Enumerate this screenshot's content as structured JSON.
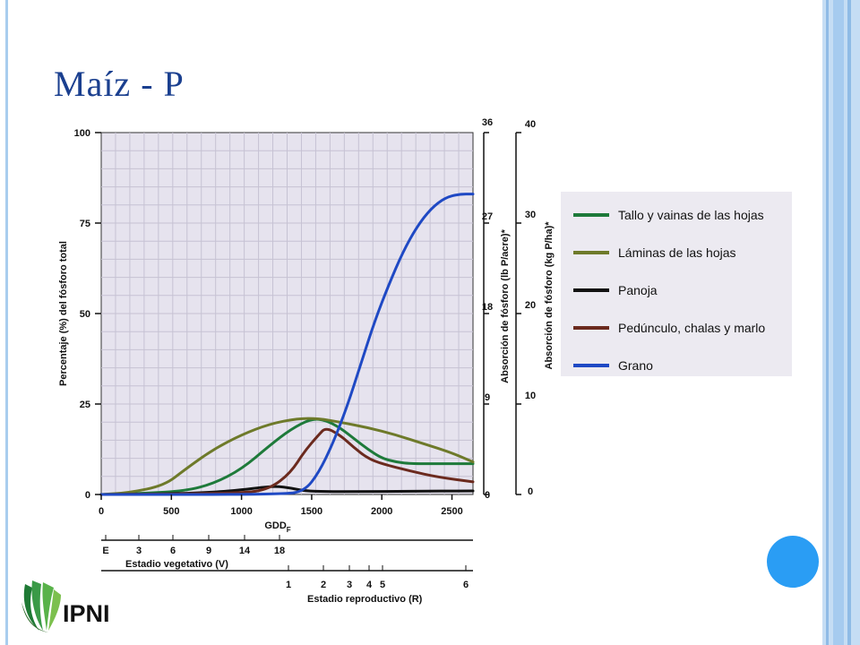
{
  "slide": {
    "title": "Maíz - P"
  },
  "logo": {
    "text": "IPNI"
  },
  "colors": {
    "accent": "#1a3f8f",
    "dot": "#2a9df4",
    "frame": "#a9cdee"
  },
  "chart_data": {
    "type": "line",
    "title": "",
    "xlabel": "GDD",
    "xlabel_subscript": "F",
    "ylabel": "Percentaje (%) del fósforo total",
    "y2label": "Absorción de fósforo (lb P/acre)*",
    "y3label": "Absorción de fósforo (kg P/ha)*",
    "xlim": [
      0,
      2650
    ],
    "ylim": [
      0,
      100
    ],
    "x_ticks": [
      "0",
      "500",
      "1000",
      "1500",
      "2000",
      "2500"
    ],
    "y_ticks": [
      "0",
      "25",
      "50",
      "75",
      "100"
    ],
    "y2_ticks": [
      "0",
      "9",
      "18",
      "27",
      "36"
    ],
    "y3_ticks": [
      "0",
      "10",
      "20",
      "30",
      "40"
    ],
    "grid": true,
    "legend_position": "right",
    "series": [
      {
        "name": "Tallo y vainas de las hojas",
        "color": "#1e7a3a",
        "x": [
          0,
          300,
          600,
          800,
          1000,
          1200,
          1350,
          1500,
          1600,
          1700,
          1800,
          1900,
          2000,
          2100,
          2200,
          2400,
          2650
        ],
        "y": [
          0,
          0.3,
          1,
          3,
          7,
          13.5,
          18,
          21,
          20.5,
          18.5,
          15.5,
          12.5,
          10,
          9,
          8.5,
          8.5,
          8.5
        ]
      },
      {
        "name": "Láminas de las hojas",
        "color": "#6e7a2a",
        "x": [
          0,
          200,
          450,
          600,
          800,
          1000,
          1200,
          1400,
          1550,
          1700,
          1900,
          2100,
          2300,
          2500,
          2650
        ],
        "y": [
          0,
          0.5,
          2.5,
          7,
          12.5,
          16.5,
          19.5,
          21,
          21,
          20,
          18.5,
          16.5,
          14,
          11.5,
          9
        ]
      },
      {
        "name": "Panoja",
        "color": "#111111",
        "x": [
          0,
          500,
          800,
          1000,
          1150,
          1250,
          1350,
          1450,
          1600,
          1800,
          2200,
          2650
        ],
        "y": [
          0,
          0.2,
          0.6,
          1.3,
          2,
          2.3,
          1.8,
          1,
          0.8,
          0.8,
          0.9,
          1
        ]
      },
      {
        "name": "Pedúnculo, chalas y marlo",
        "color": "#6b2a1e",
        "x": [
          0,
          1000,
          1200,
          1350,
          1450,
          1550,
          1600,
          1700,
          1800,
          1900,
          2000,
          2200,
          2400,
          2650
        ],
        "y": [
          0,
          0.3,
          1.5,
          6,
          12,
          16.5,
          18.5,
          16.5,
          13,
          10,
          8.5,
          6.5,
          4.8,
          3.5
        ]
      },
      {
        "name": "Grano",
        "color": "#1f49c4",
        "x": [
          0,
          1300,
          1450,
          1550,
          1650,
          1750,
          1850,
          1950,
          2050,
          2150,
          2250,
          2350,
          2450,
          2550,
          2650
        ],
        "y": [
          0,
          0,
          1,
          6,
          14,
          24,
          36,
          48,
          58,
          67,
          74,
          79,
          82,
          83,
          83
        ]
      }
    ],
    "stages_vegetative": {
      "label": "Estadio vegetativo (V)",
      "ticks": [
        "E",
        "3",
        "6",
        "9",
        "14",
        "18"
      ]
    },
    "stages_reproductive": {
      "label": "Estadio reproductivo (R)",
      "ticks": [
        "1",
        "2",
        "3",
        "4",
        "5",
        "6"
      ]
    }
  }
}
